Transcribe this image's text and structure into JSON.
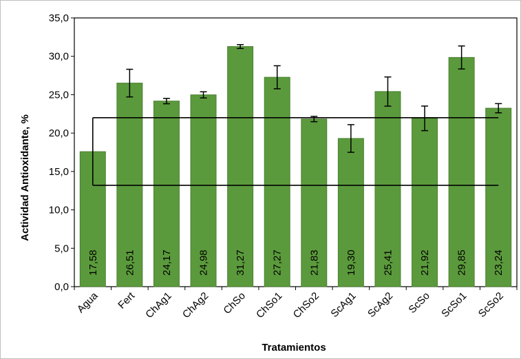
{
  "chart_data": {
    "type": "bar",
    "title": "",
    "xlabel": "Tratamientos",
    "ylabel": "Actividad Antioxidante, %",
    "ylim": [
      0,
      35
    ],
    "yticks": [
      "0,0",
      "5,0",
      "10,0",
      "15,0",
      "20,0",
      "25,0",
      "30,0",
      "35,0"
    ],
    "ytick_values": [
      0,
      5,
      10,
      15,
      20,
      25,
      30,
      35
    ],
    "categories": [
      "Agua",
      "Fert",
      "ChAg1",
      "ChAg2",
      "ChSo",
      "ChSo1",
      "ChSo2",
      "ScAg1",
      "ScAg2",
      "ScSo",
      "ScSo1",
      "ScSo2"
    ],
    "values": [
      17.58,
      26.51,
      24.17,
      24.98,
      31.27,
      27.27,
      21.83,
      19.3,
      25.41,
      21.92,
      29.85,
      23.24
    ],
    "value_labels": [
      "17,58",
      "26,51",
      "24,17",
      "24,98",
      "31,27",
      "27,27",
      "21,83",
      "19,30",
      "25,41",
      "21,92",
      "29,85",
      "23,24"
    ],
    "error": [
      null,
      1.8,
      0.35,
      0.4,
      0.25,
      1.5,
      0.35,
      1.8,
      1.9,
      1.6,
      1.5,
      0.6
    ],
    "reference_band": {
      "lower": 13.2,
      "upper": 22.0
    },
    "bar_color": "#5b9a3c",
    "bar_edge_color": "#4a7f30",
    "grid": false,
    "legend": "none"
  }
}
